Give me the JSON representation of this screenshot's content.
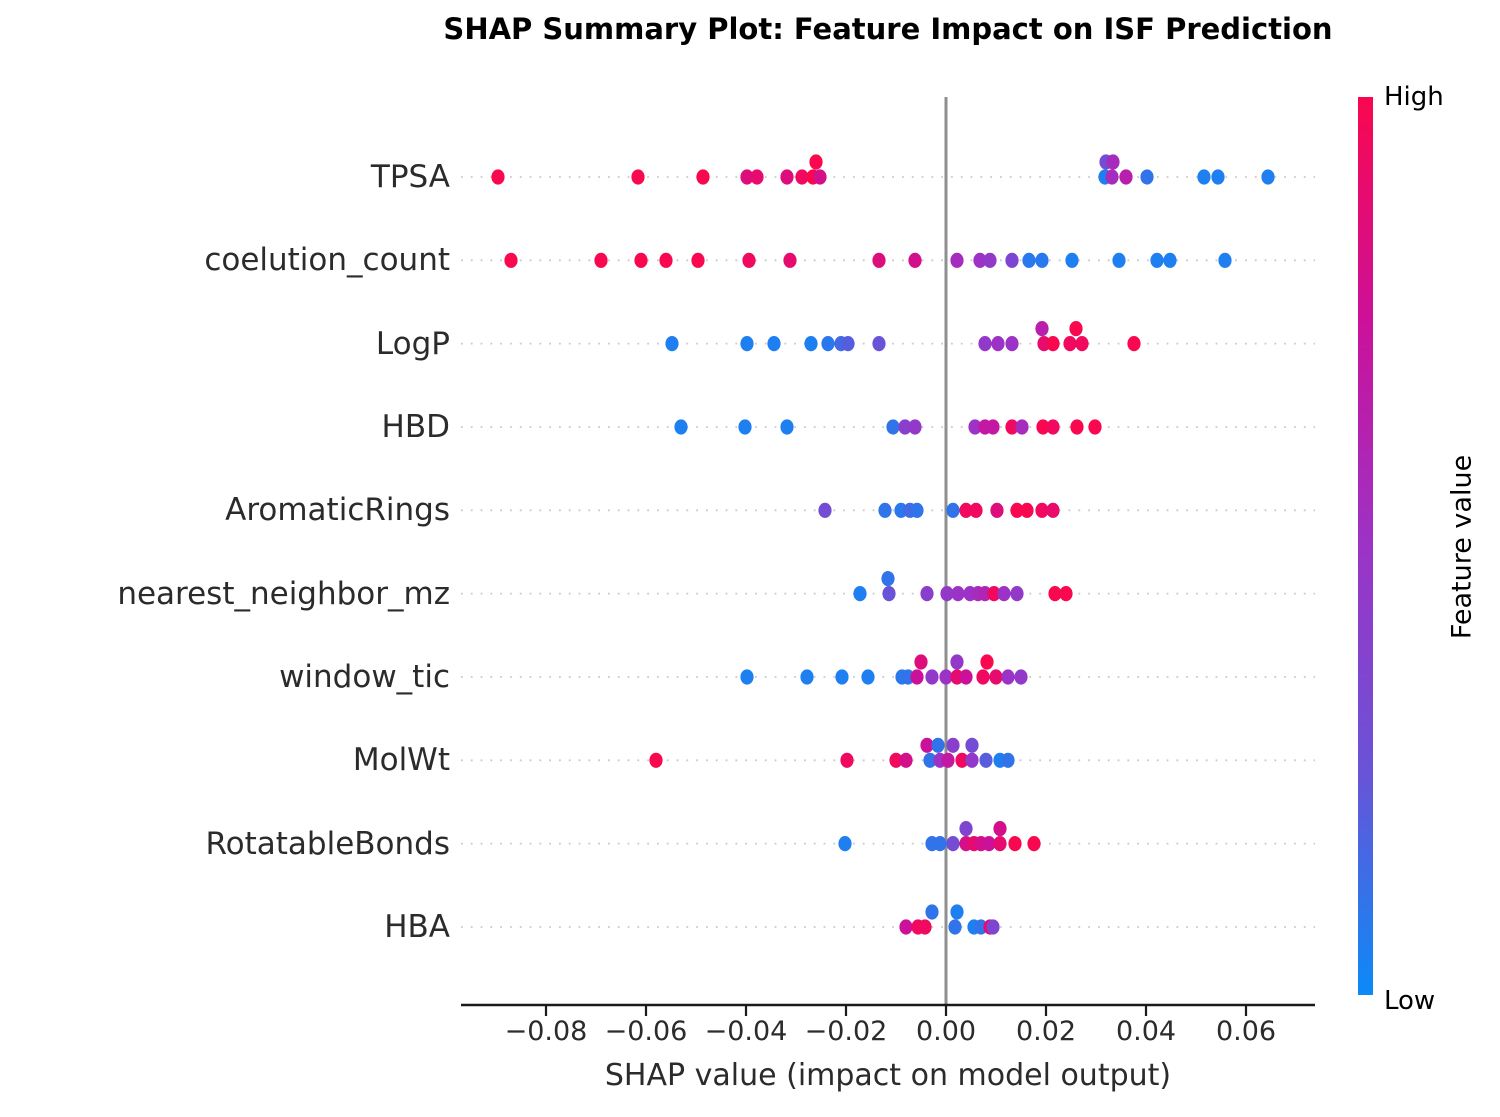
{
  "chart_data": {
    "type": "scatter",
    "variant": "shap-beeswarm-summary",
    "title": "SHAP Summary Plot: Feature Impact on ISF Prediction",
    "xlabel": "SHAP value (impact on model output)",
    "xlim": [
      -0.097,
      0.0738
    ],
    "xticks": [
      -0.08,
      -0.06,
      -0.04,
      -0.02,
      0.0,
      0.02,
      0.04,
      0.06
    ],
    "xtick_labels": [
      "−0.08",
      "−0.06",
      "−0.04",
      "−0.02",
      "0.00",
      "0.02",
      "0.04",
      "0.06"
    ],
    "grid": "dotted horizontal line per feature row",
    "zero_line": true,
    "zero_line_color": "#8f8f8f",
    "axis_color": "#1a1a1a",
    "grid_color": "#c9c9c9",
    "colorbar": {
      "label": "Feature value",
      "high_label": "High",
      "low_label": "Low",
      "stops": [
        {
          "t": 0.0,
          "hex": "#0b8af8"
        },
        {
          "t": 0.25,
          "hex": "#6a53d6"
        },
        {
          "t": 0.5,
          "hex": "#9c33c6"
        },
        {
          "t": 0.75,
          "hex": "#cb1199"
        },
        {
          "t": 1.0,
          "hex": "#f9074f"
        }
      ]
    },
    "point_format": "x = SHAP value; fv = normalized feature value (0=Low blue, 1=High red); up = jittered above row line",
    "features": [
      {
        "name": "TPSA",
        "points": [
          {
            "x": -0.0896,
            "fv": 1
          },
          {
            "x": -0.0616,
            "fv": 1
          },
          {
            "x": -0.0486,
            "fv": 1
          },
          {
            "x": -0.0398,
            "fv": 0.85
          },
          {
            "x": -0.0378,
            "fv": 0.9
          },
          {
            "x": -0.0318,
            "fv": 0.85
          },
          {
            "x": -0.0288,
            "fv": 0.95
          },
          {
            "x": -0.0266,
            "fv": 1
          },
          {
            "x": -0.0252,
            "fv": 0.8
          },
          {
            "x": -0.026,
            "fv": 1,
            "up": true
          },
          {
            "x": 0.0318,
            "fv": 0.05
          },
          {
            "x": 0.032,
            "fv": 0.3,
            "up": true
          },
          {
            "x": 0.0334,
            "fv": 0.55,
            "up": true
          },
          {
            "x": 0.0332,
            "fv": 0.55
          },
          {
            "x": 0.036,
            "fv": 0.65
          },
          {
            "x": 0.0402,
            "fv": 0.1
          },
          {
            "x": 0.0516,
            "fv": 0.05
          },
          {
            "x": 0.0544,
            "fv": 0.05
          },
          {
            "x": 0.0644,
            "fv": 0.05
          }
        ]
      },
      {
        "name": "coelution_count",
        "points": [
          {
            "x": -0.087,
            "fv": 1
          },
          {
            "x": -0.069,
            "fv": 1
          },
          {
            "x": -0.061,
            "fv": 1
          },
          {
            "x": -0.056,
            "fv": 1
          },
          {
            "x": -0.0496,
            "fv": 1
          },
          {
            "x": -0.0394,
            "fv": 0.95
          },
          {
            "x": -0.0312,
            "fv": 0.9
          },
          {
            "x": -0.0134,
            "fv": 0.85
          },
          {
            "x": -0.0062,
            "fv": 0.8
          },
          {
            "x": 0.0022,
            "fv": 0.55
          },
          {
            "x": 0.0068,
            "fv": 0.5
          },
          {
            "x": 0.0088,
            "fv": 0.45
          },
          {
            "x": 0.0132,
            "fv": 0.35
          },
          {
            "x": 0.0166,
            "fv": 0.08
          },
          {
            "x": 0.0192,
            "fv": 0.08
          },
          {
            "x": 0.0252,
            "fv": 0.05
          },
          {
            "x": 0.0346,
            "fv": 0.05
          },
          {
            "x": 0.0422,
            "fv": 0.05
          },
          {
            "x": 0.0448,
            "fv": 0.05
          },
          {
            "x": 0.0558,
            "fv": 0.05
          }
        ]
      },
      {
        "name": "LogP",
        "points": [
          {
            "x": -0.0548,
            "fv": 0.05
          },
          {
            "x": -0.0398,
            "fv": 0.05
          },
          {
            "x": -0.0344,
            "fv": 0.05
          },
          {
            "x": -0.027,
            "fv": 0.05
          },
          {
            "x": -0.0236,
            "fv": 0.08
          },
          {
            "x": -0.021,
            "fv": 0.15
          },
          {
            "x": -0.0196,
            "fv": 0.2
          },
          {
            "x": -0.0134,
            "fv": 0.25
          },
          {
            "x": 0.0078,
            "fv": 0.45
          },
          {
            "x": 0.0104,
            "fv": 0.5
          },
          {
            "x": 0.0132,
            "fv": 0.5
          },
          {
            "x": 0.0192,
            "fv": 0.65,
            "up": true
          },
          {
            "x": 0.0196,
            "fv": 0.9
          },
          {
            "x": 0.0214,
            "fv": 1
          },
          {
            "x": 0.026,
            "fv": 1,
            "up": true
          },
          {
            "x": 0.0248,
            "fv": 0.95
          },
          {
            "x": 0.0272,
            "fv": 0.95
          },
          {
            "x": 0.0376,
            "fv": 1
          }
        ]
      },
      {
        "name": "HBD",
        "points": [
          {
            "x": -0.053,
            "fv": 0.05
          },
          {
            "x": -0.0402,
            "fv": 0.05
          },
          {
            "x": -0.0318,
            "fv": 0.05
          },
          {
            "x": -0.0106,
            "fv": 0.1
          },
          {
            "x": -0.0082,
            "fv": 0.4
          },
          {
            "x": -0.0062,
            "fv": 0.45
          },
          {
            "x": 0.0058,
            "fv": 0.5
          },
          {
            "x": 0.0078,
            "fv": 0.7
          },
          {
            "x": 0.0094,
            "fv": 0.7
          },
          {
            "x": 0.0132,
            "fv": 0.95
          },
          {
            "x": 0.0152,
            "fv": 0.55
          },
          {
            "x": 0.0194,
            "fv": 1
          },
          {
            "x": 0.0214,
            "fv": 0.95
          },
          {
            "x": 0.0262,
            "fv": 1
          },
          {
            "x": 0.0298,
            "fv": 1
          }
        ]
      },
      {
        "name": "AromaticRings",
        "points": [
          {
            "x": -0.0242,
            "fv": 0.3
          },
          {
            "x": -0.0122,
            "fv": 0.1
          },
          {
            "x": -0.009,
            "fv": 0.08
          },
          {
            "x": -0.0072,
            "fv": 0.15
          },
          {
            "x": -0.0058,
            "fv": 0.1
          },
          {
            "x": 0.0014,
            "fv": 0.1
          },
          {
            "x": 0.004,
            "fv": 0.95
          },
          {
            "x": 0.006,
            "fv": 0.95
          },
          {
            "x": 0.0102,
            "fv": 0.85
          },
          {
            "x": 0.0142,
            "fv": 1
          },
          {
            "x": 0.0162,
            "fv": 1
          },
          {
            "x": 0.0192,
            "fv": 0.95
          },
          {
            "x": 0.0214,
            "fv": 0.9
          }
        ]
      },
      {
        "name": "nearest_neighbor_mz",
        "points": [
          {
            "x": -0.0172,
            "fv": 0.05
          },
          {
            "x": -0.0116,
            "fv": 0.1,
            "up": true
          },
          {
            "x": -0.0114,
            "fv": 0.25
          },
          {
            "x": -0.0038,
            "fv": 0.4
          },
          {
            "x": 0.0002,
            "fv": 0.45
          },
          {
            "x": 0.0024,
            "fv": 0.5
          },
          {
            "x": 0.0048,
            "fv": 0.5
          },
          {
            "x": 0.0064,
            "fv": 0.55
          },
          {
            "x": 0.0078,
            "fv": 0.6
          },
          {
            "x": 0.0096,
            "fv": 0.95
          },
          {
            "x": 0.0116,
            "fv": 0.5
          },
          {
            "x": 0.0142,
            "fv": 0.45
          },
          {
            "x": 0.0218,
            "fv": 1
          },
          {
            "x": 0.024,
            "fv": 1
          }
        ]
      },
      {
        "name": "window_tic",
        "points": [
          {
            "x": -0.0398,
            "fv": 0.05
          },
          {
            "x": -0.0278,
            "fv": 0.05
          },
          {
            "x": -0.0208,
            "fv": 0.05
          },
          {
            "x": -0.0156,
            "fv": 0.05
          },
          {
            "x": -0.0088,
            "fv": 0.08
          },
          {
            "x": -0.0076,
            "fv": 0.1
          },
          {
            "x": -0.0058,
            "fv": 0.75
          },
          {
            "x": -0.005,
            "fv": 0.85,
            "up": true
          },
          {
            "x": -0.0028,
            "fv": 0.45
          },
          {
            "x": 0.0,
            "fv": 0.5
          },
          {
            "x": 0.0022,
            "fv": 0.45,
            "up": true
          },
          {
            "x": 0.0022,
            "fv": 0.9
          },
          {
            "x": 0.004,
            "fv": 0.75
          },
          {
            "x": 0.0082,
            "fv": 1,
            "up": true
          },
          {
            "x": 0.0074,
            "fv": 0.95
          },
          {
            "x": 0.01,
            "fv": 0.9
          },
          {
            "x": 0.0124,
            "fv": 0.5
          },
          {
            "x": 0.015,
            "fv": 0.45
          }
        ]
      },
      {
        "name": "MolWt",
        "points": [
          {
            "x": -0.058,
            "fv": 1
          },
          {
            "x": -0.0198,
            "fv": 0.95
          },
          {
            "x": -0.01,
            "fv": 0.95
          },
          {
            "x": -0.008,
            "fv": 0.8
          },
          {
            "x": -0.0038,
            "fv": 0.75,
            "up": true
          },
          {
            "x": -0.0016,
            "fv": 0.1,
            "up": true
          },
          {
            "x": 0.0014,
            "fv": 0.4,
            "up": true
          },
          {
            "x": 0.0052,
            "fv": 0.3,
            "up": true
          },
          {
            "x": -0.0032,
            "fv": 0.1
          },
          {
            "x": -0.0012,
            "fv": 0.5
          },
          {
            "x": 0.0004,
            "fv": 0.7
          },
          {
            "x": 0.0032,
            "fv": 0.95
          },
          {
            "x": 0.0052,
            "fv": 0.45
          },
          {
            "x": 0.008,
            "fv": 0.2
          },
          {
            "x": 0.0108,
            "fv": 0.05
          },
          {
            "x": 0.0124,
            "fv": 0.1
          }
        ]
      },
      {
        "name": "RotatableBonds",
        "points": [
          {
            "x": -0.0202,
            "fv": 0.05
          },
          {
            "x": -0.0028,
            "fv": 0.1
          },
          {
            "x": -0.0012,
            "fv": 0.1
          },
          {
            "x": 0.0014,
            "fv": 0.3
          },
          {
            "x": 0.004,
            "fv": 0.35,
            "up": true
          },
          {
            "x": 0.004,
            "fv": 0.8
          },
          {
            "x": 0.0056,
            "fv": 0.9
          },
          {
            "x": 0.007,
            "fv": 0.8
          },
          {
            "x": 0.0086,
            "fv": 0.75
          },
          {
            "x": 0.0108,
            "fv": 0.8,
            "up": true
          },
          {
            "x": 0.0108,
            "fv": 0.9
          },
          {
            "x": 0.0138,
            "fv": 1
          },
          {
            "x": 0.0176,
            "fv": 1
          }
        ]
      },
      {
        "name": "HBA",
        "points": [
          {
            "x": -0.008,
            "fv": 0.75
          },
          {
            "x": -0.0056,
            "fv": 0.95
          },
          {
            "x": -0.0042,
            "fv": 0.95
          },
          {
            "x": -0.0028,
            "fv": 0.1,
            "up": true
          },
          {
            "x": 0.0022,
            "fv": 0.05,
            "up": true
          },
          {
            "x": 0.0018,
            "fv": 0.1
          },
          {
            "x": 0.0056,
            "fv": 0.05
          },
          {
            "x": 0.007,
            "fv": 0.1
          },
          {
            "x": 0.0088,
            "fv": 0.9
          },
          {
            "x": 0.0094,
            "fv": 0.35
          }
        ]
      }
    ]
  }
}
